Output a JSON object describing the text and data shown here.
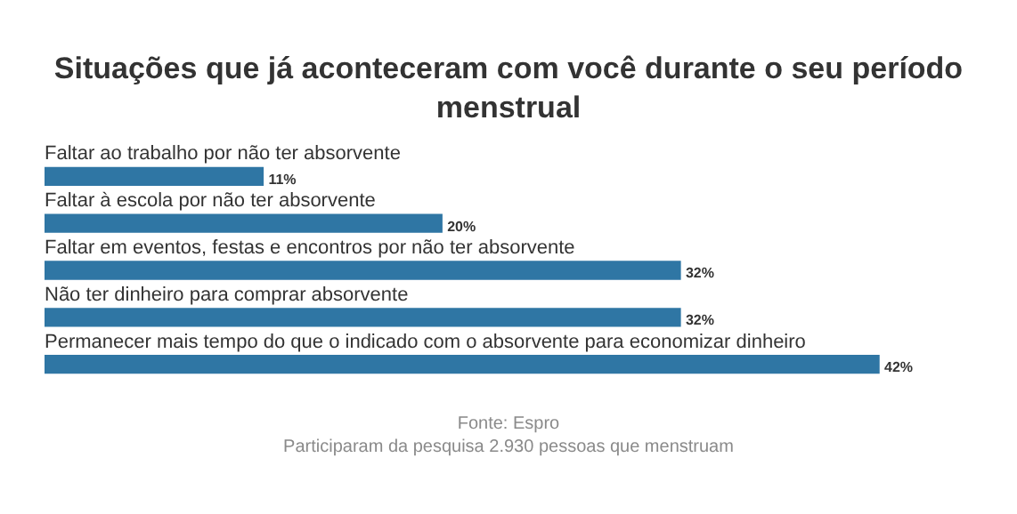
{
  "chart_data": {
    "type": "bar",
    "orientation": "horizontal",
    "title": "Situações que já aconteceram com você durante o seu período menstrual",
    "categories": [
      "Faltar ao trabalho por não ter absorvente",
      "Faltar à escola por não ter absorvente",
      "Faltar em eventos, festas e encontros por não ter absorvente",
      "Não ter dinheiro para comprar absorvente",
      "Permanecer mais tempo do que o indicado com o absorvente para economizar dinheiro"
    ],
    "values": [
      11,
      20,
      32,
      32,
      42
    ],
    "color": "#2f76a4",
    "data_labels": true,
    "value_labels": [
      "11%",
      "20%",
      "32%",
      "32%",
      "42%"
    ],
    "annotations": [
      "Fonte: Espro",
      "Participaram da pesquisa 2.930 pessoas que menstruam"
    ]
  }
}
